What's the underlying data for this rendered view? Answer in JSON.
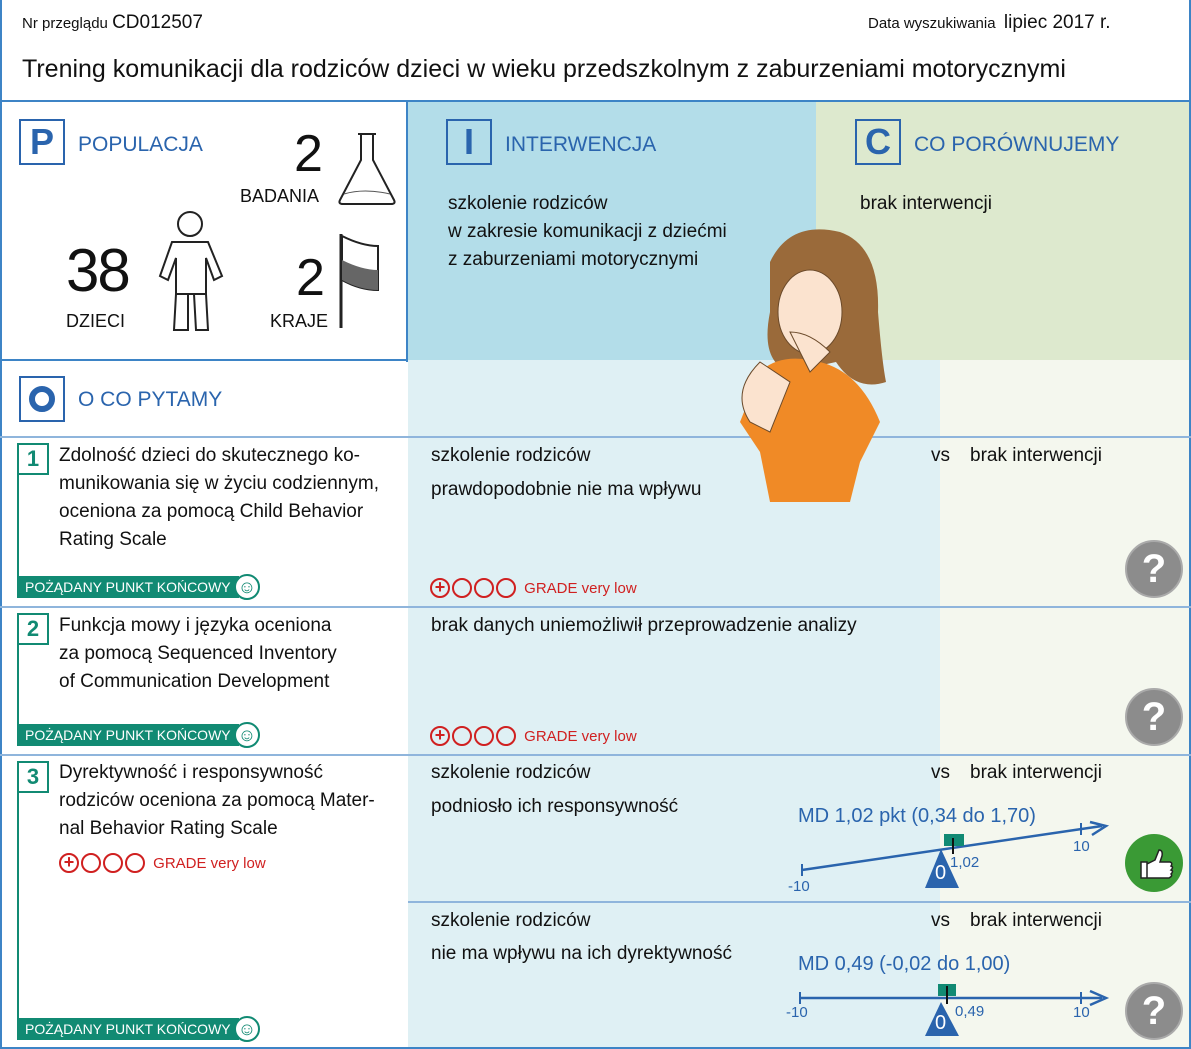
{
  "header": {
    "review_label": "Nr przeglądu",
    "review_id": "CD012507",
    "search_label": "Data wyszukiwania",
    "search_date": "lipiec 2017 r.",
    "title": "Trening komunikacji dla rodziców dzieci w wieku przedszkolnym z zaburzeniami motorycznymi"
  },
  "population": {
    "letter": "P",
    "heading": "POPULACJA",
    "studies_count": "2",
    "studies_label": "BADANIA",
    "children_count": "38",
    "children_label": "DZIECI",
    "countries_count": "2",
    "countries_label": "KRAJE"
  },
  "intervention": {
    "letter": "I",
    "heading": "INTERWENCJA",
    "lines": [
      "szkolenie rodziców",
      "w zakresie komunikacji z dziećmi",
      "z zaburzeniami motorycznymi"
    ]
  },
  "comparison": {
    "letter": "C",
    "heading": "CO PORÓWNUJEMY",
    "text": "brak interwencji"
  },
  "outcomes": {
    "letter": "O",
    "heading": "O CO PYTAMY",
    "endpoint_label": "POŻĄDANY PUNKT KOŃCOWY",
    "grade_label": "GRADE very low",
    "vs": "vs",
    "items": [
      {
        "num": "1",
        "lines": [
          "Zdolność dzieci do skutecznego ko-",
          "munikowania się w życiu codziennym,",
          "oceniona za pomocą Child Behavior",
          "Rating Scale"
        ],
        "intervention": "szkolenie rodziców",
        "comparator": "brak interwencji",
        "result": "prawdopodobnie nie ma wpływu",
        "icon": "question-icon"
      },
      {
        "num": "2",
        "lines": [
          "Funkcja mowy i języka oceniona",
          "za pomocą Sequenced Inventory",
          "of Communication Development"
        ],
        "result": "brak danych uniemożliwił przeprowadzenie analizy",
        "icon": "question-icon"
      },
      {
        "num": "3",
        "lines": [
          "Dyrektywność i responsywność",
          "rodziców oceniona za pomocą Mater-",
          "nal Behavior Rating Scale"
        ],
        "sub": [
          {
            "intervention": "szkolenie rodziców",
            "comparator": "brak interwencji",
            "result": "podniosło ich responsywność",
            "md": "MD 1,02 pkt (0,34 do 1,70)",
            "value": 1.02,
            "value_label": "1,02",
            "ci": [
              0.34,
              1.7
            ],
            "min": "-10",
            "max": "10",
            "zero": "0",
            "icon": "thumbs-up-icon"
          },
          {
            "intervention": "szkolenie rodziców",
            "comparator": "brak interwencji",
            "result": "nie ma wpływu na ich dyrektywność",
            "md": "MD 0,49 (-0,02 do 1,00)",
            "value": 0.49,
            "value_label": "0,49",
            "ci": [
              -0.02,
              1.0
            ],
            "min": "-10",
            "max": "10",
            "zero": "0",
            "icon": "question-icon"
          }
        ]
      }
    ]
  },
  "colors": {
    "blue": "#2a64ad",
    "green": "#118a73",
    "red": "#d02020"
  }
}
